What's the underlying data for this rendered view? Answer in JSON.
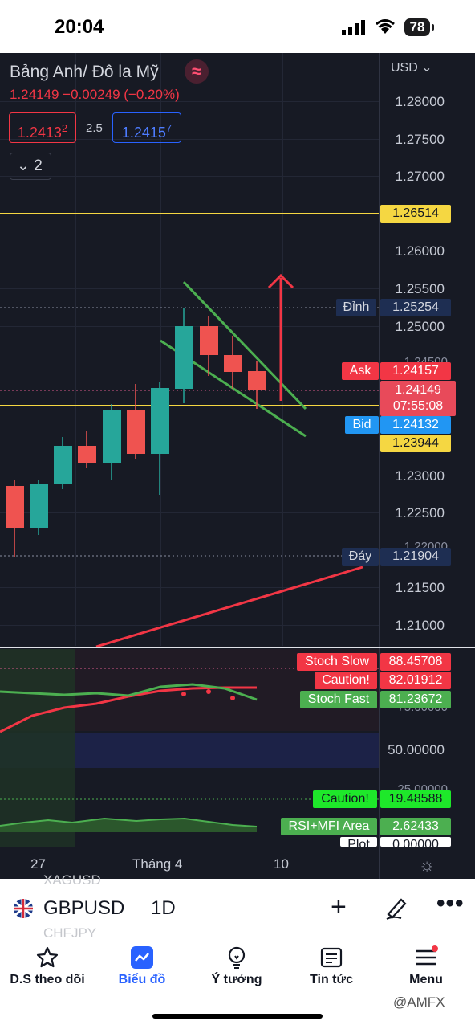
{
  "status": {
    "time": "20:04",
    "battery": "78"
  },
  "chart": {
    "currency": "USD",
    "title": "Bảng Anh/ Đô la Mỹ",
    "quote": "1.24149  −0.00249 (−0.20%)",
    "sell_main": "1.2413",
    "sell_sup": "2",
    "spread": "2.5",
    "buy_main": "1.2415",
    "buy_sup": "7",
    "collapse_count": "2",
    "price_ticks": [
      "1.28000",
      "1.27500",
      "1.27000",
      "1.26000",
      "1.25500",
      "1.25000",
      "1.23000",
      "1.22500",
      "1.21500",
      "1.21000"
    ],
    "partial_ticks": [
      "1.24500",
      "1.22000"
    ],
    "labels": {
      "resistance": "1.26514",
      "dinh_label": "Đỉnh",
      "dinh_value": "1.25254",
      "ask_label": "Ask",
      "ask_value": "1.24157",
      "last_price": "1.24149",
      "countdown": "07:55:08",
      "bid_label": "Bid",
      "bid_value": "1.24132",
      "support": "1.23944",
      "day_label": "Đáy",
      "day_value": "1.21904"
    },
    "indicator": {
      "ticks": [
        "75.00000",
        "50.00000",
        "25.00000"
      ],
      "stoch_slow_label": "Stoch Slow",
      "stoch_slow_value": "88.45708",
      "caution_hi_label": "Caution!",
      "caution_hi_value": "82.01912",
      "stoch_fast_label": "Stoch Fast",
      "stoch_fast_value": "81.23672",
      "caution_lo_label": "Caution!",
      "caution_lo_value": "19.48588",
      "rsi_label": "RSI+MFI Area",
      "rsi_value": "2.62433",
      "plot_label": "Plot",
      "plot_value": "0.00000"
    },
    "xaxis": [
      "27",
      "Tháng 4",
      "10"
    ],
    "colors": {
      "up": "#26a69a",
      "down": "#ef5350",
      "yellow": "#f5d742",
      "green_line": "#4caf50",
      "red_line": "#f23645"
    }
  },
  "symbol_bar": {
    "ghost_top": "XAGUSD",
    "symbol": "GBPUSD",
    "interval": "1D",
    "ghost_bottom": "CHFJPY"
  },
  "tabs": [
    {
      "label": "D.S theo dõi",
      "icon": "star-icon"
    },
    {
      "label": "Biểu đồ",
      "icon": "chart-icon",
      "active": true
    },
    {
      "label": "Ý tưởng",
      "icon": "lightbulb-icon"
    },
    {
      "label": "Tin tức",
      "icon": "news-icon"
    },
    {
      "label": "Menu",
      "icon": "menu-icon"
    }
  ],
  "watermark": "@AMFX"
}
